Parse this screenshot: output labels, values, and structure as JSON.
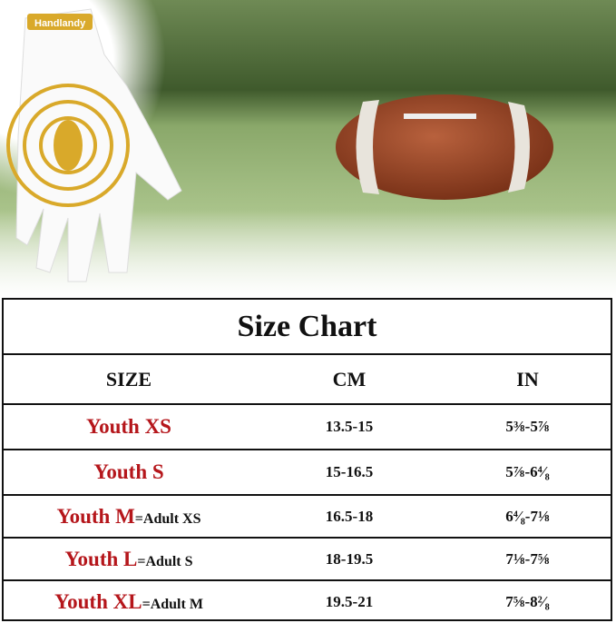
{
  "brand": "Handlandy",
  "colors": {
    "accent_red": "#b5161b",
    "glove_gold": "#d9a92a",
    "border": "#111111"
  },
  "size_chart": {
    "title": "Size Chart",
    "headers": [
      "SIZE",
      "CM",
      "IN"
    ],
    "rows": [
      {
        "youth": "Youth XS",
        "adult": "",
        "cm": "13.5-15",
        "in": "5⅜-5⅞"
      },
      {
        "youth": "Youth S",
        "adult": "",
        "cm": "15-16.5",
        "in": "5⅞-6⁴⁄₈"
      },
      {
        "youth": "Youth M",
        "adult": "=Adult XS",
        "cm": "16.5-18",
        "in": "6⁴⁄₈-7⅛"
      },
      {
        "youth": "Youth L",
        "adult": "=Adult S",
        "cm": "18-19.5",
        "in": "7⅛-7⅝"
      },
      {
        "youth": "Youth XL",
        "adult": "=Adult M",
        "cm": "19.5-21",
        "in": "7⅝-8²⁄₈"
      }
    ]
  }
}
